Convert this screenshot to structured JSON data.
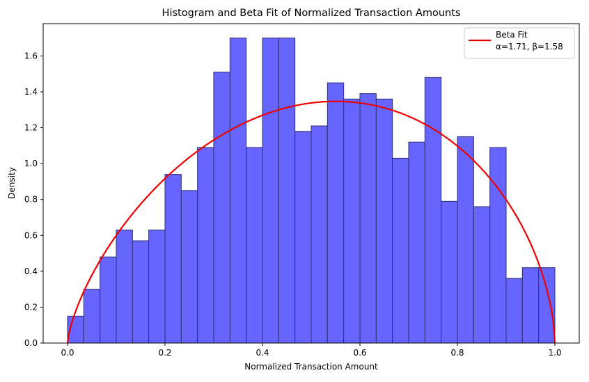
{
  "chart_data": {
    "type": "bar",
    "title": "Histogram and Beta Fit of Normalized Transaction Amounts",
    "xlabel": "Normalized Transaction Amount",
    "ylabel": "Density",
    "xlim": [
      -0.05,
      1.05
    ],
    "ylim": [
      0,
      1.78
    ],
    "xticks": [
      "0.0",
      "0.2",
      "0.4",
      "0.6",
      "0.8",
      "1.0"
    ],
    "yticks": [
      "0.0",
      "0.2",
      "0.4",
      "0.6",
      "0.8",
      "1.0",
      "1.2",
      "1.4",
      "1.6"
    ],
    "bins": {
      "start": 0.0,
      "end": 1.0,
      "count": 30,
      "values": [
        0.15,
        0.3,
        0.48,
        0.63,
        0.57,
        0.63,
        0.94,
        0.85,
        1.09,
        1.51,
        1.7,
        1.09,
        1.7,
        1.7,
        1.18,
        1.21,
        1.45,
        1.36,
        1.39,
        1.36,
        1.03,
        1.12,
        1.48,
        0.79,
        1.15,
        0.76,
        1.09,
        0.36,
        0.42,
        0.42
      ],
      "color": "#6666ff",
      "edge_color": "#2e2e6e"
    },
    "fit": {
      "label": "Beta Fit",
      "params_label": "α=1.71, β=1.58",
      "alpha": 1.71,
      "beta": 1.58,
      "color": "#ee0000"
    },
    "legend_position": "top-right",
    "grid": false
  }
}
